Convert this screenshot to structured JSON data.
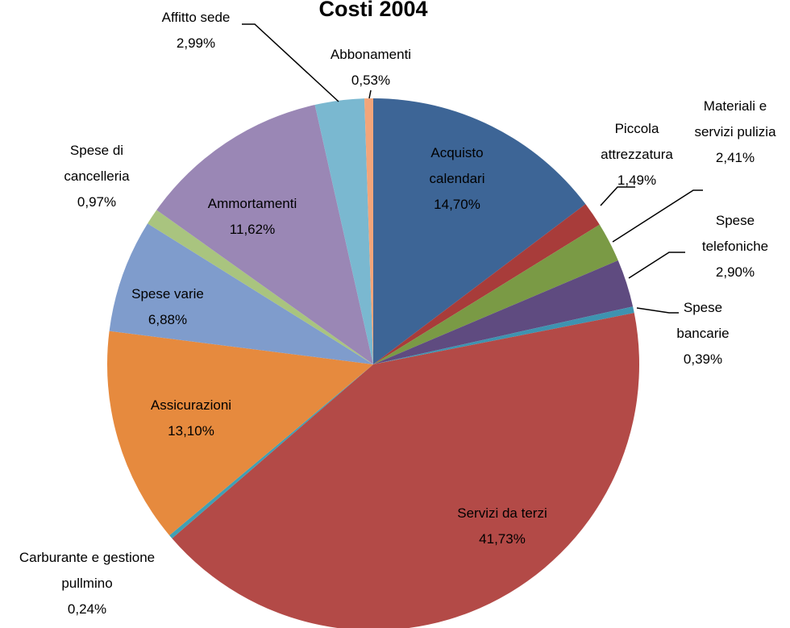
{
  "chart_data": {
    "type": "pie",
    "title": "Costi 2004",
    "categories": [
      "Acquisto calendari",
      "Piccola attrezzatura",
      "Materiali e servizi pulizia",
      "Spese telefoniche",
      "Spese bancarie",
      "Servizi da terzi",
      "Carburante e gestione pullmino",
      "Assicurazioni",
      "Spese varie",
      "Spese di cancelleria",
      "Ammortamenti",
      "Affitto sede",
      "Abbonamenti"
    ],
    "values": [
      14.7,
      1.49,
      2.41,
      2.9,
      0.39,
      41.73,
      0.24,
      13.1,
      6.88,
      0.97,
      11.62,
      2.99,
      0.53
    ],
    "value_labels": [
      "14,70%",
      "1,49%",
      "2,41%",
      "2,90%",
      "0,39%",
      "41,73%",
      "0,24%",
      "13,10%",
      "6,88%",
      "0,97%",
      "11,62%",
      "2,99%",
      "0,53%"
    ],
    "colors": [
      "#3d6596",
      "#a83c3a",
      "#7a9a45",
      "#5f4b80",
      "#3e93b0",
      "#b34a47",
      "#3fa0b5",
      "#e68a3e",
      "#7f9ccc",
      "#a9c47f",
      "#9a87b5",
      "#7ab8d0",
      "#f2a57a"
    ]
  }
}
